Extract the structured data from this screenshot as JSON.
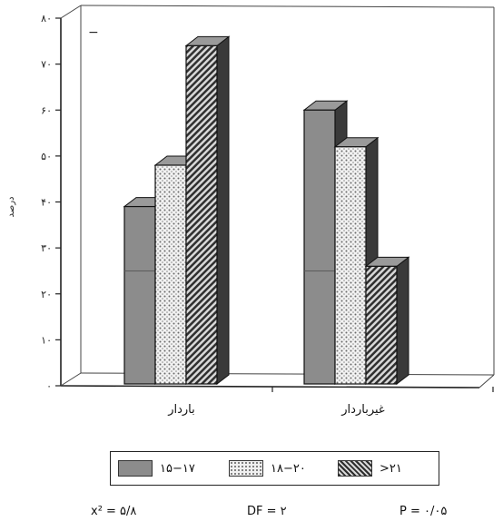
{
  "chart_data": {
    "type": "bar",
    "ylabel": "درصد",
    "ylim": [
      0,
      80
    ],
    "yticks": [
      "۰",
      "۱۰",
      "۲۰",
      "۳۰",
      "۴۰",
      "۵۰",
      "۶۰",
      "۷۰",
      "۸۰"
    ],
    "categories": [
      "باردار",
      "غیرباردار"
    ],
    "series": [
      {
        "name": "۱۵−۱۷",
        "values": [
          39,
          60
        ],
        "color": "#8c8c8c",
        "pattern": "solid"
      },
      {
        "name": "۱۸−۲۰",
        "values": [
          48,
          52
        ],
        "color": "#d6d6d6",
        "pattern": "dots"
      },
      {
        "name": ">۲۱",
        "values": [
          74,
          26
        ],
        "color": "#6e6e6e",
        "pattern": "diagonal"
      }
    ],
    "grid": false,
    "legend_position": "bottom",
    "annotation": "−"
  },
  "stats": {
    "chi_square": "x² = ۵/۸",
    "df": "DF = ۲",
    "p": "P = ۰/۰۵"
  }
}
